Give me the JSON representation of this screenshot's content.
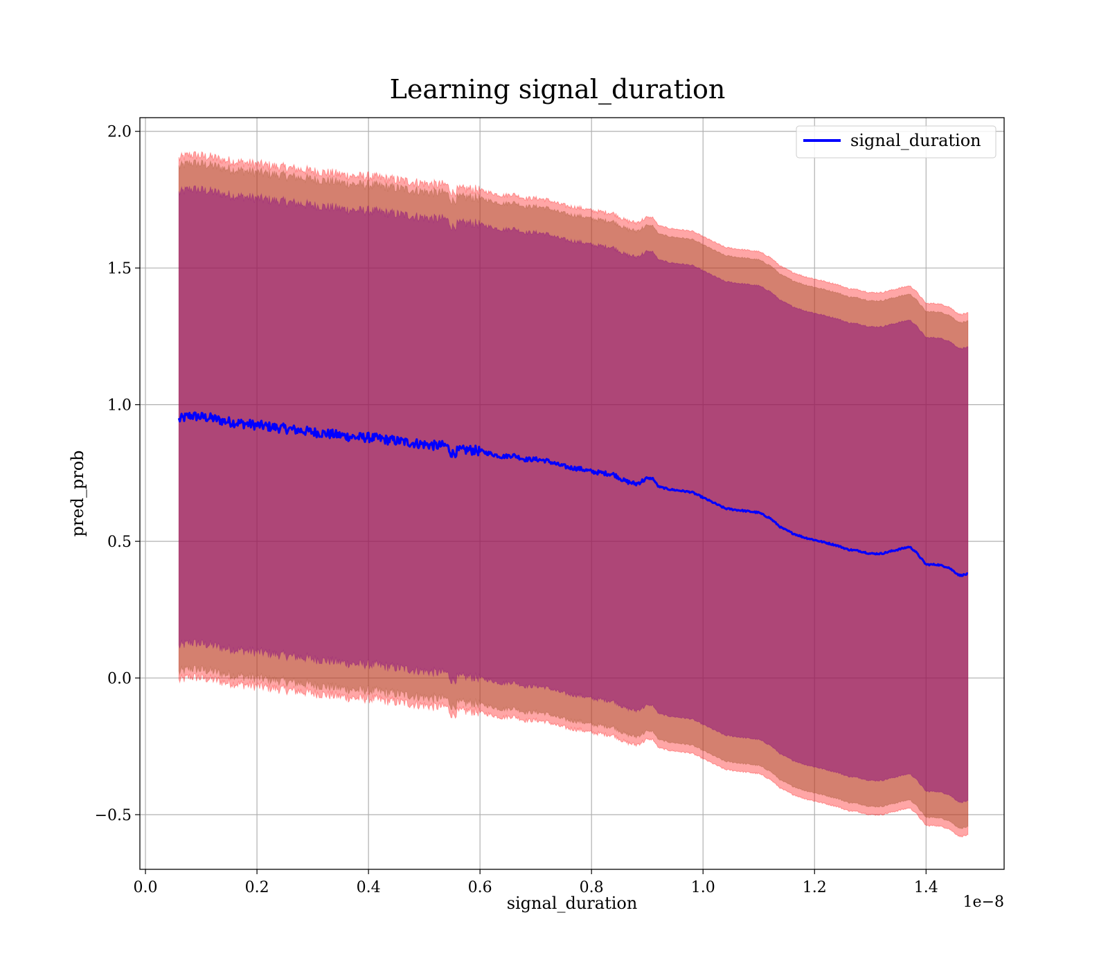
{
  "chart_data": {
    "type": "line",
    "title": "Learning signal_duration",
    "xlabel": "signal_duration",
    "ylabel": "pred_prob",
    "x_offset_label": "1e−8",
    "xlim": [
      -0.01,
      1.54
    ],
    "ylim": [
      -0.7,
      2.05
    ],
    "x_ticks": [
      0.0,
      0.2,
      0.4,
      0.6,
      0.8,
      1.0,
      1.2,
      1.4
    ],
    "x_tick_labels": [
      "0.0",
      "0.2",
      "0.4",
      "0.6",
      "0.8",
      "1.0",
      "1.2",
      "1.4"
    ],
    "y_ticks": [
      -0.5,
      0.0,
      0.5,
      1.0,
      1.5,
      2.0
    ],
    "y_tick_labels": [
      "−0.5",
      "0.0",
      "0.5",
      "1.0",
      "1.5",
      "2.0"
    ],
    "grid": true,
    "legend_position": "top-right",
    "colors": {
      "line": "#0000ff",
      "band_outer": "#ff0000",
      "band_middle": "#a0522d",
      "band_inner": "#800080"
    },
    "x": [
      0.06,
      0.08,
      0.1,
      0.12,
      0.14,
      0.16,
      0.18,
      0.2,
      0.22,
      0.24,
      0.26,
      0.28,
      0.3,
      0.32,
      0.34,
      0.36,
      0.38,
      0.4,
      0.42,
      0.44,
      0.46,
      0.48,
      0.5,
      0.52,
      0.54,
      0.55,
      0.56,
      0.58,
      0.6,
      0.62,
      0.64,
      0.66,
      0.68,
      0.7,
      0.72,
      0.74,
      0.76,
      0.78,
      0.8,
      0.82,
      0.84,
      0.86,
      0.88,
      0.9,
      0.91,
      0.92,
      0.94,
      0.96,
      0.98,
      1.0,
      1.02,
      1.04,
      1.06,
      1.08,
      1.1,
      1.12,
      1.14,
      1.16,
      1.18,
      1.2,
      1.22,
      1.24,
      1.26,
      1.28,
      1.3,
      1.32,
      1.34,
      1.36,
      1.37,
      1.38,
      1.4,
      1.42,
      1.44,
      1.46,
      1.475
    ],
    "series": [
      {
        "name": "signal_duration",
        "values": [
          0.945,
          0.96,
          0.955,
          0.95,
          0.94,
          0.935,
          0.93,
          0.925,
          0.92,
          0.915,
          0.91,
          0.905,
          0.9,
          0.895,
          0.89,
          0.885,
          0.88,
          0.88,
          0.875,
          0.87,
          0.865,
          0.86,
          0.855,
          0.85,
          0.85,
          0.82,
          0.83,
          0.835,
          0.83,
          0.82,
          0.81,
          0.815,
          0.8,
          0.8,
          0.795,
          0.78,
          0.77,
          0.765,
          0.755,
          0.75,
          0.745,
          0.72,
          0.71,
          0.73,
          0.73,
          0.7,
          0.69,
          0.685,
          0.68,
          0.66,
          0.64,
          0.62,
          0.615,
          0.61,
          0.605,
          0.585,
          0.55,
          0.53,
          0.515,
          0.505,
          0.495,
          0.485,
          0.47,
          0.465,
          0.455,
          0.455,
          0.465,
          0.475,
          0.48,
          0.465,
          0.415,
          0.415,
          0.405,
          0.375,
          0.38
        ]
      }
    ]
  }
}
